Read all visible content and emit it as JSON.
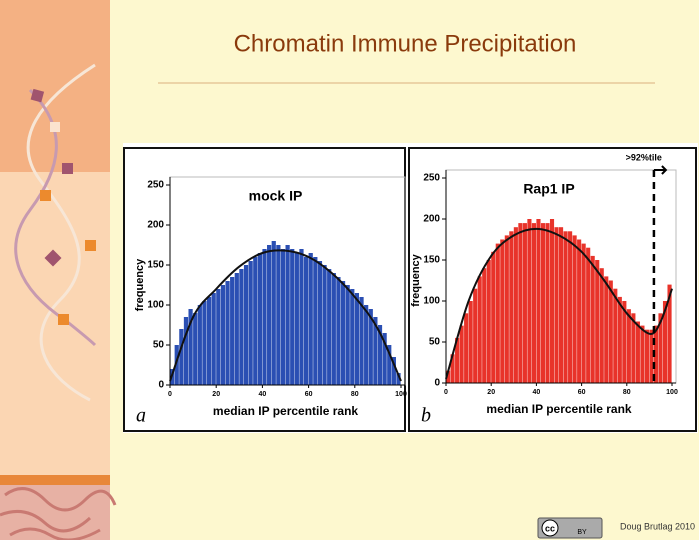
{
  "title": "Chromatin Immune Precipitation",
  "footer": "Doug Brutlag 2010",
  "cc_badge": [
    "cc",
    "BY"
  ],
  "chart_data": [
    {
      "type": "histogram",
      "title": "mock IP",
      "panel_label": "a",
      "xlabel": "median IP percentile rank",
      "ylabel": "frequency",
      "color": "#2b4fb3",
      "bins": [
        0,
        2,
        4,
        6,
        8,
        10,
        12,
        14,
        16,
        18,
        20,
        22,
        24,
        26,
        28,
        30,
        32,
        34,
        36,
        38,
        40,
        42,
        44,
        46,
        48,
        50,
        52,
        54,
        56,
        58,
        60,
        62,
        64,
        66,
        68,
        70,
        72,
        74,
        76,
        78,
        80,
        82,
        84,
        86,
        88,
        90,
        92,
        94,
        96,
        98,
        100
      ],
      "values": [
        20,
        50,
        70,
        85,
        95,
        90,
        100,
        105,
        110,
        115,
        120,
        125,
        130,
        135,
        140,
        145,
        150,
        155,
        160,
        165,
        170,
        175,
        180,
        175,
        170,
        175,
        170,
        165,
        170,
        160,
        165,
        160,
        155,
        150,
        145,
        140,
        135,
        130,
        125,
        120,
        115,
        110,
        100,
        95,
        85,
        75,
        65,
        50,
        35,
        15
      ],
      "xlim": [
        0,
        100
      ],
      "ylim": [
        0,
        250
      ],
      "xticks": [
        0,
        20,
        40,
        60,
        80,
        100
      ],
      "yticks": [
        0,
        50,
        100,
        150,
        200,
        250
      ],
      "fit": {
        "x": [
          0,
          10,
          20,
          30,
          40,
          50,
          60,
          70,
          80,
          90,
          100
        ],
        "y": [
          5,
          85,
          120,
          148,
          165,
          168,
          160,
          140,
          110,
          70,
          5
        ]
      }
    },
    {
      "type": "histogram",
      "title": "Rap1 IP",
      "panel_label": "b",
      "xlabel": "median IP percentile rank",
      "ylabel": "frequency",
      "color": "#e8332a",
      "bins": [
        0,
        2,
        4,
        6,
        8,
        10,
        12,
        14,
        16,
        18,
        20,
        22,
        24,
        26,
        28,
        30,
        32,
        34,
        36,
        38,
        40,
        42,
        44,
        46,
        48,
        50,
        52,
        54,
        56,
        58,
        60,
        62,
        64,
        66,
        68,
        70,
        72,
        74,
        76,
        78,
        80,
        82,
        84,
        86,
        88,
        90,
        92,
        94,
        96,
        98,
        100
      ],
      "values": [
        15,
        35,
        55,
        70,
        85,
        100,
        115,
        130,
        140,
        150,
        160,
        170,
        175,
        180,
        185,
        190,
        195,
        195,
        200,
        195,
        200,
        195,
        195,
        200,
        190,
        190,
        185,
        185,
        180,
        175,
        170,
        165,
        155,
        150,
        140,
        130,
        125,
        115,
        105,
        100,
        90,
        85,
        75,
        70,
        65,
        65,
        70,
        85,
        100,
        120
      ],
      "xlim": [
        0,
        100
      ],
      "ylim": [
        0,
        250
      ],
      "xticks": [
        0,
        20,
        40,
        60,
        80,
        100
      ],
      "yticks": [
        0,
        50,
        100,
        150,
        200,
        250
      ],
      "fit": {
        "x": [
          0,
          10,
          20,
          30,
          40,
          50,
          60,
          70,
          80,
          90,
          95,
          100
        ],
        "y": [
          5,
          100,
          155,
          180,
          188,
          180,
          160,
          125,
          85,
          60,
          75,
          115
        ]
      },
      "threshold": 92,
      "threshold_label": ">92%tile"
    }
  ]
}
